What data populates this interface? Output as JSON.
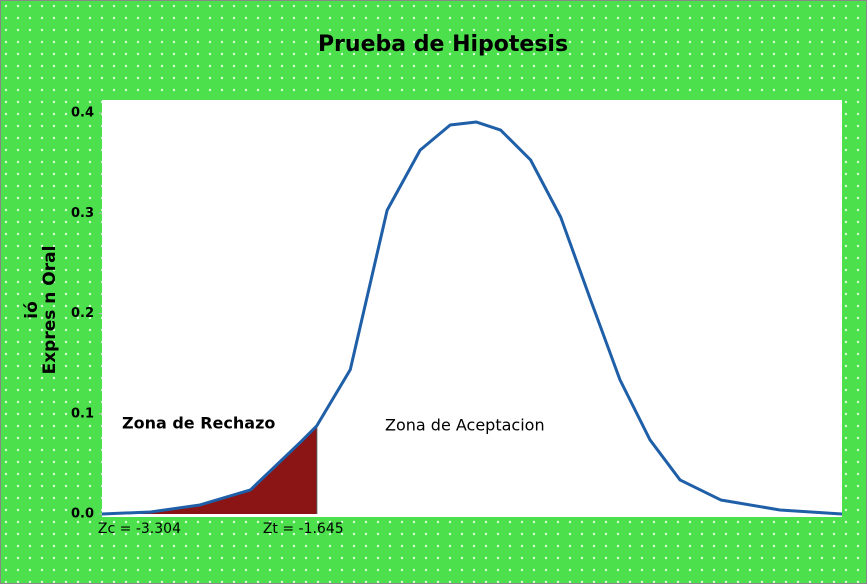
{
  "chart_data": {
    "type": "line",
    "title": "Prueba de Hipotesis",
    "ylabel_lines": [
      "ió",
      "Expres  n Oral"
    ],
    "x": [
      -3.86,
      -3.36,
      -2.85,
      -2.33,
      -1.81,
      -1.645,
      -1.3,
      -0.92,
      -0.58,
      -0.27,
      0,
      0.25,
      0.56,
      0.87,
      1.18,
      1.48,
      1.79,
      2.1,
      2.52,
      3.13,
      3.77
    ],
    "values": [
      0,
      0.002,
      0.009,
      0.024,
      0.072,
      0.088,
      0.144,
      0.303,
      0.363,
      0.388,
      0.391,
      0.383,
      0.353,
      0.296,
      0.213,
      0.134,
      0.074,
      0.034,
      0.014,
      0.004,
      0
    ],
    "color": "#1f5fa8",
    "shade_color": "#8b1414",
    "xlim": [
      -3.86,
      3.77
    ],
    "ylim": [
      0,
      0.4
    ],
    "yticks": [
      {
        "value": 0,
        "label": "0.0"
      },
      0.1,
      0.2,
      0.3,
      0.4
    ],
    "grid": false,
    "annotations": [
      {
        "text": "Zc = -3.304",
        "x": -3.304
      },
      {
        "text": "Zt = -1.645",
        "x": -1.645
      }
    ],
    "zones": [
      {
        "text": "Zona de Rechazo",
        "color": "#c00000"
      },
      {
        "text": "Zona de Aceptacion",
        "color": "#1f5fa8"
      }
    ]
  }
}
